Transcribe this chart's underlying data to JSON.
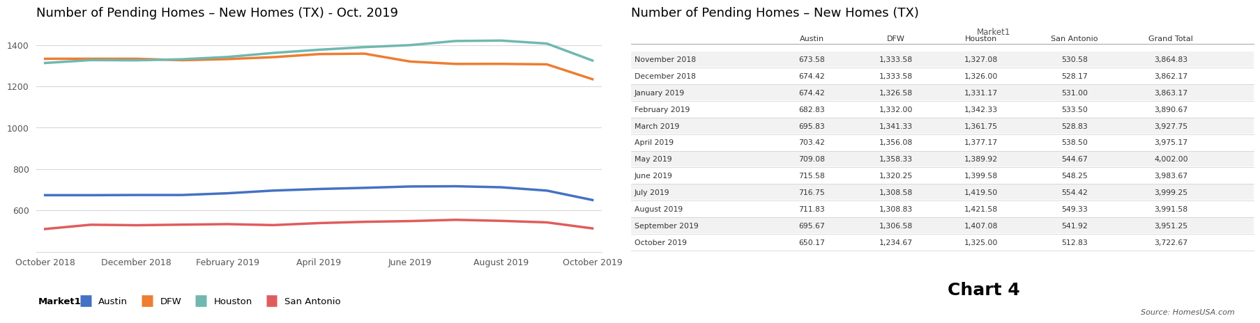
{
  "chart_title": "Number of Pending Homes – New Homes (TX) - Oct. 2019",
  "table_title": "Number of Pending Homes – New Homes (TX)",
  "austin": [
    673.58,
    673.58,
    674.42,
    674.42,
    682.83,
    695.83,
    703.42,
    709.08,
    715.58,
    716.75,
    711.83,
    695.67,
    650.17
  ],
  "dfw": [
    1333.58,
    1333.58,
    1333.58,
    1326.58,
    1332.0,
    1341.33,
    1356.08,
    1358.33,
    1320.25,
    1308.58,
    1308.83,
    1306.58,
    1234.67
  ],
  "houston": [
    1313.08,
    1327.08,
    1326.0,
    1331.17,
    1342.33,
    1361.75,
    1377.17,
    1389.92,
    1399.58,
    1419.5,
    1421.58,
    1407.08,
    1325.0
  ],
  "san_antonio": [
    510.0,
    530.58,
    528.17,
    531.0,
    533.5,
    528.83,
    538.5,
    544.67,
    548.25,
    554.42,
    549.33,
    541.92,
    512.83
  ],
  "table_rows": [
    [
      "November 2018",
      "673.58",
      "1,333.58",
      "1,327.08",
      "530.58",
      "3,864.83"
    ],
    [
      "December 2018",
      "674.42",
      "1,333.58",
      "1,326.00",
      "528.17",
      "3,862.17"
    ],
    [
      "January 2019",
      "674.42",
      "1,326.58",
      "1,331.17",
      "531.00",
      "3,863.17"
    ],
    [
      "February 2019",
      "682.83",
      "1,332.00",
      "1,342.33",
      "533.50",
      "3,890.67"
    ],
    [
      "March 2019",
      "695.83",
      "1,341.33",
      "1,361.75",
      "528.83",
      "3,927.75"
    ],
    [
      "April 2019",
      "703.42",
      "1,356.08",
      "1,377.17",
      "538.50",
      "3,975.17"
    ],
    [
      "May 2019",
      "709.08",
      "1,358.33",
      "1,389.92",
      "544.67",
      "4,002.00"
    ],
    [
      "June 2019",
      "715.58",
      "1,320.25",
      "1,399.58",
      "548.25",
      "3,983.67"
    ],
    [
      "July 2019",
      "716.75",
      "1,308.58",
      "1,419.50",
      "554.42",
      "3,999.25"
    ],
    [
      "August 2019",
      "711.83",
      "1,308.83",
      "1,421.58",
      "549.33",
      "3,991.58"
    ],
    [
      "September 2019",
      "695.67",
      "1,306.58",
      "1,407.08",
      "541.92",
      "3,951.25"
    ],
    [
      "October 2019",
      "650.17",
      "1,234.67",
      "1,325.00",
      "512.83",
      "3,722.67"
    ]
  ],
  "table_col_headers": [
    "",
    "Austin",
    "DFW",
    "Houston",
    "San Antonio",
    "Grand Total"
  ],
  "table_super_header": "Market1",
  "ylim": [
    400,
    1500
  ],
  "yticks": [
    600,
    800,
    1000,
    1200,
    1400
  ],
  "x_tick_positions": [
    0,
    2,
    4,
    6,
    8,
    10,
    12
  ],
  "x_tick_labels": [
    "October 2018",
    "December 2018",
    "February 2019",
    "April 2019",
    "June 2019",
    "August 2019",
    "October 2019"
  ],
  "chart4_label": "Chart 4",
  "source_label": "Source: HomesUSA.com",
  "legend_label": "Market1",
  "bg_color": "#ffffff",
  "grid_color": "#d9d9d9",
  "houston_line_color": "#70b8b0",
  "dfw_line_color": "#ed7d31",
  "austin_line_color": "#4472c4",
  "san_antonio_line_color": "#e05c5c",
  "col_widths": [
    0.22,
    0.14,
    0.13,
    0.145,
    0.155,
    0.155
  ]
}
